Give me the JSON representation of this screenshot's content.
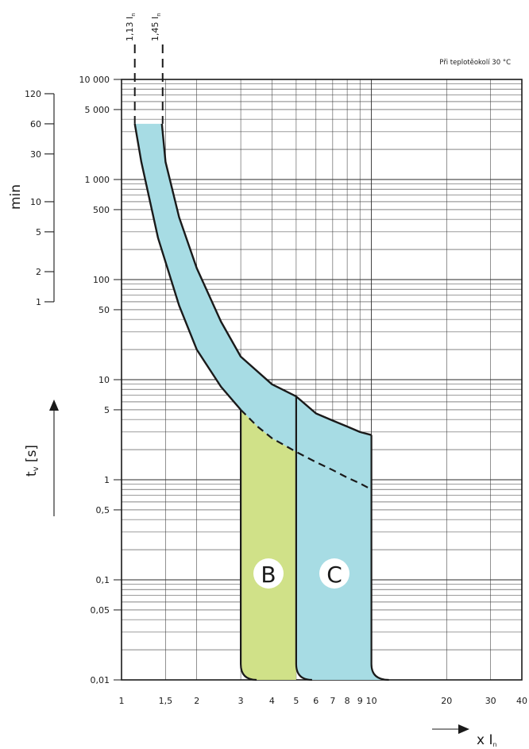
{
  "chart_data": {
    "type": "area",
    "note": "Při teplotěokolí 30 °C",
    "x_scale": "log",
    "y_scale": "log",
    "x_ticks": [
      {
        "v": 1,
        "label": "1"
      },
      {
        "v": 1.5,
        "label": "1,5"
      },
      {
        "v": 2,
        "label": "2"
      },
      {
        "v": 3,
        "label": "3"
      },
      {
        "v": 4,
        "label": "4"
      },
      {
        "v": 5,
        "label": "5"
      },
      {
        "v": 6,
        "label": "6"
      },
      {
        "v": 7,
        "label": "7"
      },
      {
        "v": 8,
        "label": "8"
      },
      {
        "v": 9,
        "label": "9"
      },
      {
        "v": 10,
        "label": "10"
      },
      {
        "v": 20,
        "label": "20"
      },
      {
        "v": 30,
        "label": "30"
      },
      {
        "v": 40,
        "label": "40"
      }
    ],
    "y_ticks": [
      {
        "v": 0.01,
        "label": "0,01"
      },
      {
        "v": 0.05,
        "label": "0,05"
      },
      {
        "v": 0.1,
        "label": "0,1"
      },
      {
        "v": 0.5,
        "label": "0,5"
      },
      {
        "v": 1,
        "label": "1"
      },
      {
        "v": 5,
        "label": "5"
      },
      {
        "v": 10,
        "label": "10"
      },
      {
        "v": 50,
        "label": "50"
      },
      {
        "v": 100,
        "label": "100"
      },
      {
        "v": 500,
        "label": "500"
      },
      {
        "v": 1000,
        "label": "1 000"
      },
      {
        "v": 5000,
        "label": "5 000"
      },
      {
        "v": 10000,
        "label": "10 000"
      }
    ],
    "min_ticks": [
      {
        "v": 60,
        "label": "1"
      },
      {
        "v": 120,
        "label": "2"
      },
      {
        "v": 300,
        "label": "5"
      },
      {
        "v": 600,
        "label": "10"
      },
      {
        "v": 1800,
        "label": "30"
      },
      {
        "v": 3600,
        "label": "60"
      },
      {
        "v": 7200,
        "label": "120"
      }
    ],
    "min_axis_label": "min",
    "y_axis_label": {
      "main": "t",
      "sub": "v",
      "unit": " [s]"
    },
    "x_axis_label": {
      "main": "x I",
      "sub": "n"
    },
    "top_markers": [
      {
        "x": 1.13,
        "label_main": "1,13 I",
        "label_sub": "n"
      },
      {
        "x": 1.45,
        "label_main": "1,45 I",
        "label_sub": "n"
      }
    ],
    "band": {
      "upper_curve": [
        [
          1.45,
          3600
        ],
        [
          1.5,
          1500
        ],
        [
          1.7,
          420
        ],
        [
          2,
          130
        ],
        [
          2.5,
          38
        ],
        [
          3,
          17
        ],
        [
          4,
          9
        ],
        [
          5,
          6.8
        ],
        [
          6,
          4.6
        ],
        [
          7,
          3.9
        ],
        [
          8,
          3.4
        ],
        [
          9,
          3.0
        ],
        [
          10,
          2.8
        ]
      ],
      "lower_curve": [
        [
          1.13,
          3600
        ],
        [
          1.2,
          1500
        ],
        [
          1.4,
          260
        ],
        [
          1.7,
          55
        ],
        [
          2,
          20
        ],
        [
          2.5,
          8.5
        ],
        [
          3,
          5
        ]
      ],
      "dashed_curve": [
        [
          3,
          5
        ],
        [
          3.5,
          3.4
        ],
        [
          4,
          2.6
        ],
        [
          5,
          1.9
        ],
        [
          6,
          1.5
        ],
        [
          7,
          1.25
        ],
        [
          8,
          1.05
        ],
        [
          9,
          0.92
        ],
        [
          10,
          0.8
        ]
      ],
      "cap_t": 3600,
      "fill_color": "#a7dce4"
    },
    "regions": [
      {
        "label": "B",
        "x_from": 3,
        "x_to": 5,
        "t_bottom": 0.01,
        "fill_color": "#d0e188"
      },
      {
        "label": "C",
        "x_from": 5,
        "x_to": 10,
        "t_bottom": 0.01,
        "fill_color": "#a7dce4"
      }
    ]
  }
}
